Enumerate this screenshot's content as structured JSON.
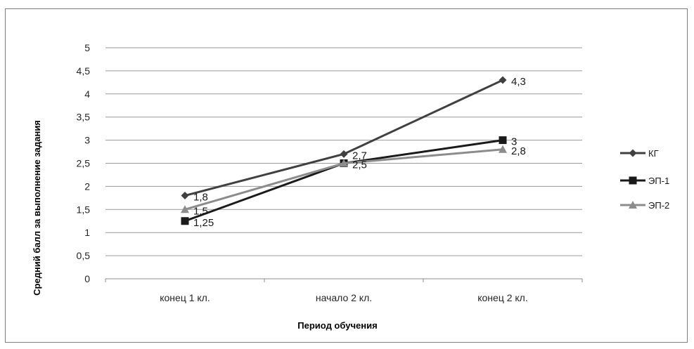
{
  "chart_data": {
    "type": "line",
    "title": "",
    "xlabel": "Период обучения",
    "ylabel": "Средний балл за выполнение задания",
    "categories": [
      "конец 1 кл.",
      "начало 2 кл.",
      "конец 2 кл."
    ],
    "ylim": [
      0,
      5
    ],
    "yticks": [
      "0",
      "0,5",
      "1",
      "1,5",
      "2",
      "2,5",
      "3",
      "3,5",
      "4",
      "4,5",
      "5"
    ],
    "grid": true,
    "legend_position": "right",
    "series": [
      {
        "name": "КГ",
        "values": [
          1.8,
          2.7,
          4.3
        ],
        "labels": [
          "1,8",
          "2,7",
          "4,3"
        ],
        "color": "#404040",
        "marker": "diamond"
      },
      {
        "name": "ЭП-1",
        "values": [
          1.25,
          2.5,
          3
        ],
        "labels": [
          "1,25",
          "",
          "3"
        ],
        "color": "#1a1a1a",
        "marker": "square"
      },
      {
        "name": "ЭП-2",
        "values": [
          1.5,
          2.5,
          2.8
        ],
        "labels": [
          "1,5",
          "2,5",
          "2,8"
        ],
        "color": "#8c8c8c",
        "marker": "triangle"
      }
    ]
  }
}
